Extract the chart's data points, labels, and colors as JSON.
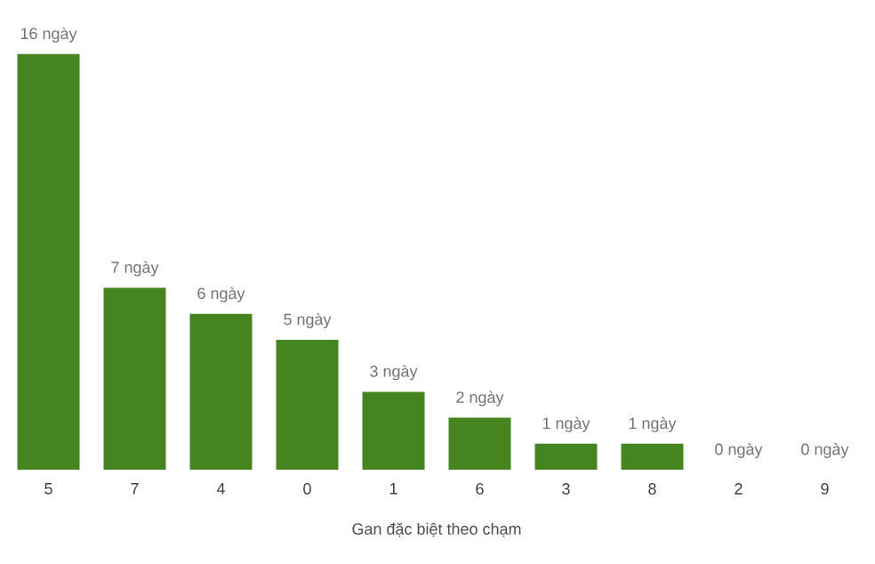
{
  "chart_data": {
    "type": "bar",
    "xlabel": "Gan đặc biệt theo chạm",
    "categories": [
      "5",
      "7",
      "4",
      "0",
      "1",
      "6",
      "3",
      "8",
      "2",
      "9"
    ],
    "values": [
      16,
      7,
      6,
      5,
      3,
      2,
      1,
      1,
      0,
      0
    ],
    "value_labels": [
      "16 ngày",
      "7 ngày",
      "6 ngày",
      "5 ngày",
      "3 ngày",
      "2 ngày",
      "1 ngày",
      "1 ngày",
      "0 ngày",
      "0 ngày"
    ],
    "color": "#468420"
  }
}
